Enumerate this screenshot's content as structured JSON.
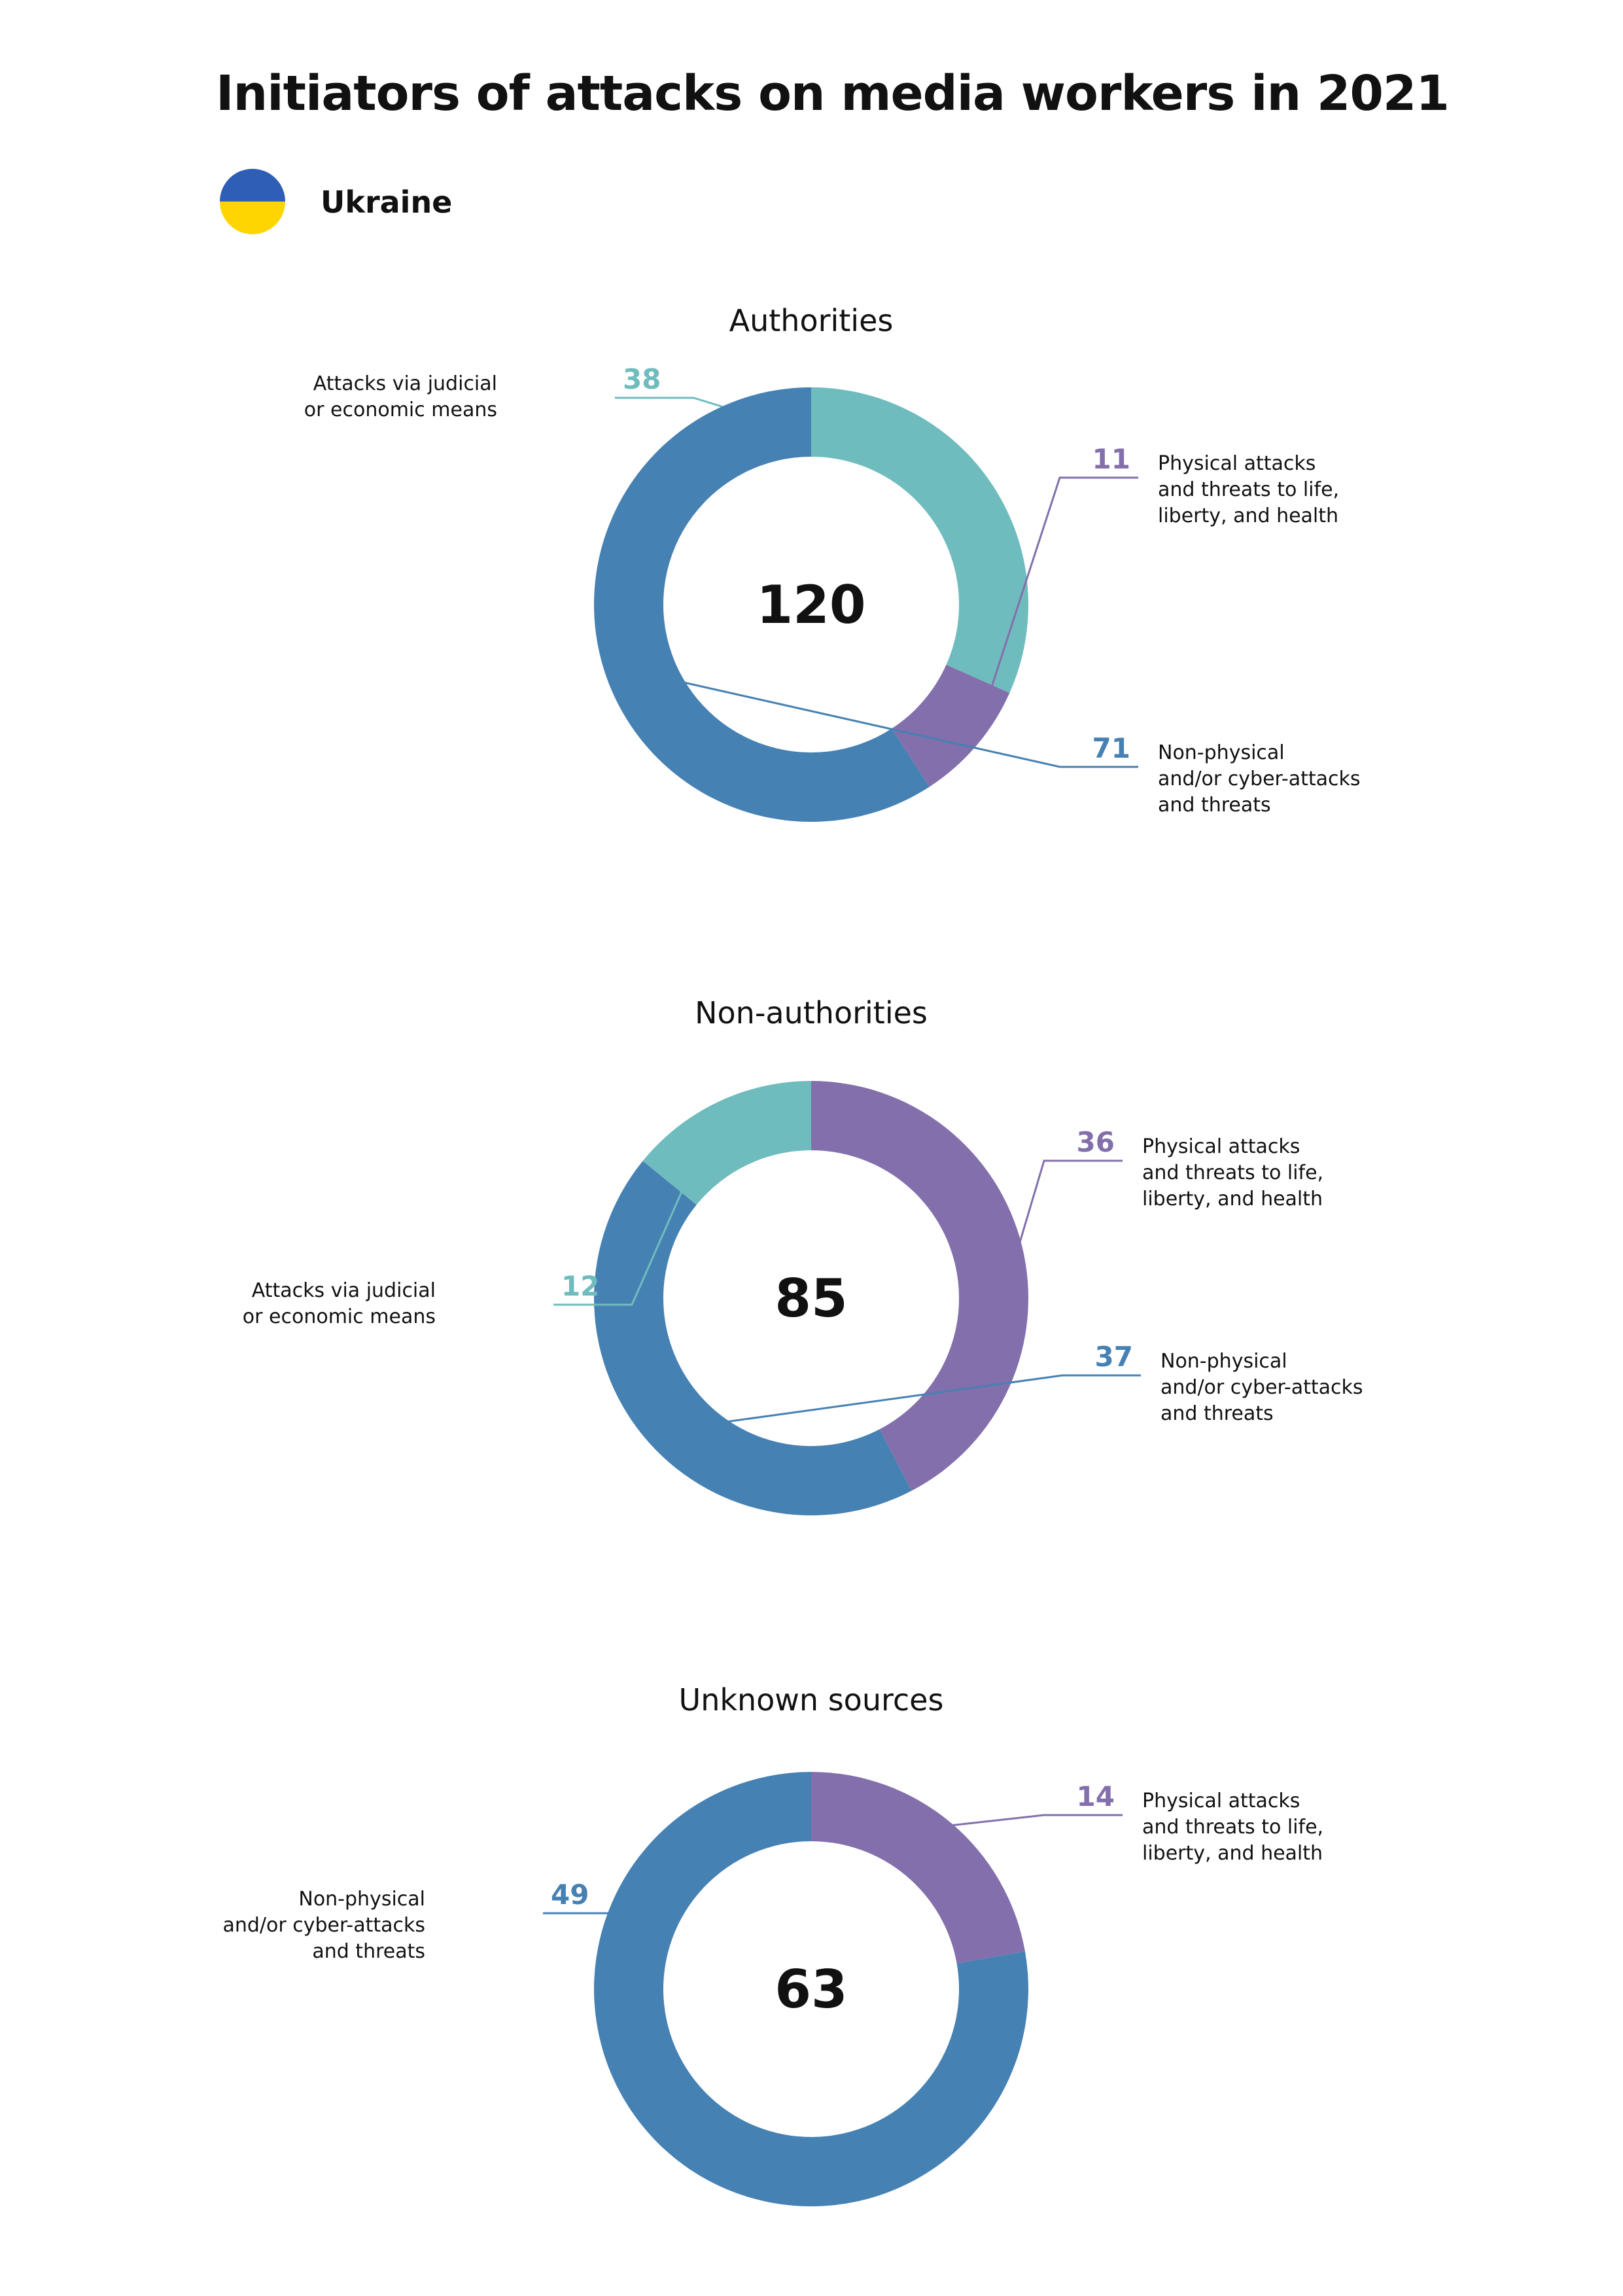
{
  "title": "Initiators of attacks on media workers in 2021",
  "country": "Ukraine",
  "flag": {
    "top_color": "#2E5EB6",
    "bottom_color": "#FFD500"
  },
  "colors": {
    "judicial": "#6FBCBE",
    "physical": "#836FAB",
    "nonphysical": "#4681B3"
  },
  "chart_data": [
    {
      "type": "pie",
      "title": "Authorities",
      "total": "120",
      "slices": [
        {
          "key": "judicial",
          "value": 38,
          "label": "38",
          "text": [
            "Attacks via judicial",
            "or economic means"
          ]
        },
        {
          "key": "physical",
          "value": 11,
          "label": "11",
          "text": [
            "Physical attacks",
            "and threats to life,",
            "liberty, and health"
          ]
        },
        {
          "key": "nonphysical",
          "value": 71,
          "label": "71",
          "text": [
            "Non-physical",
            "and/or cyber-attacks",
            "and threats"
          ]
        }
      ]
    },
    {
      "type": "pie",
      "title": "Non-authorities",
      "total": "85",
      "slices": [
        {
          "key": "physical",
          "value": 36,
          "label": "36",
          "text": [
            "Physical attacks",
            "and threats to life,",
            "liberty, and health"
          ]
        },
        {
          "key": "nonphysical",
          "value": 37,
          "label": "37",
          "text": [
            "Non-physical",
            "and/or cyber-attacks",
            "and threats"
          ]
        },
        {
          "key": "judicial",
          "value": 12,
          "label": "12",
          "text": [
            "Attacks via judicial",
            "or economic means"
          ]
        }
      ]
    },
    {
      "type": "pie",
      "title": "Unknown sources",
      "total": "63",
      "slices": [
        {
          "key": "physical",
          "value": 14,
          "label": "14",
          "text": [
            "Physical attacks",
            "and threats to life,",
            "liberty, and health"
          ]
        },
        {
          "key": "nonphysical",
          "value": 49,
          "label": "49",
          "text": [
            "Non-physical",
            "and/or cyber-attacks",
            "and threats"
          ]
        }
      ]
    }
  ]
}
